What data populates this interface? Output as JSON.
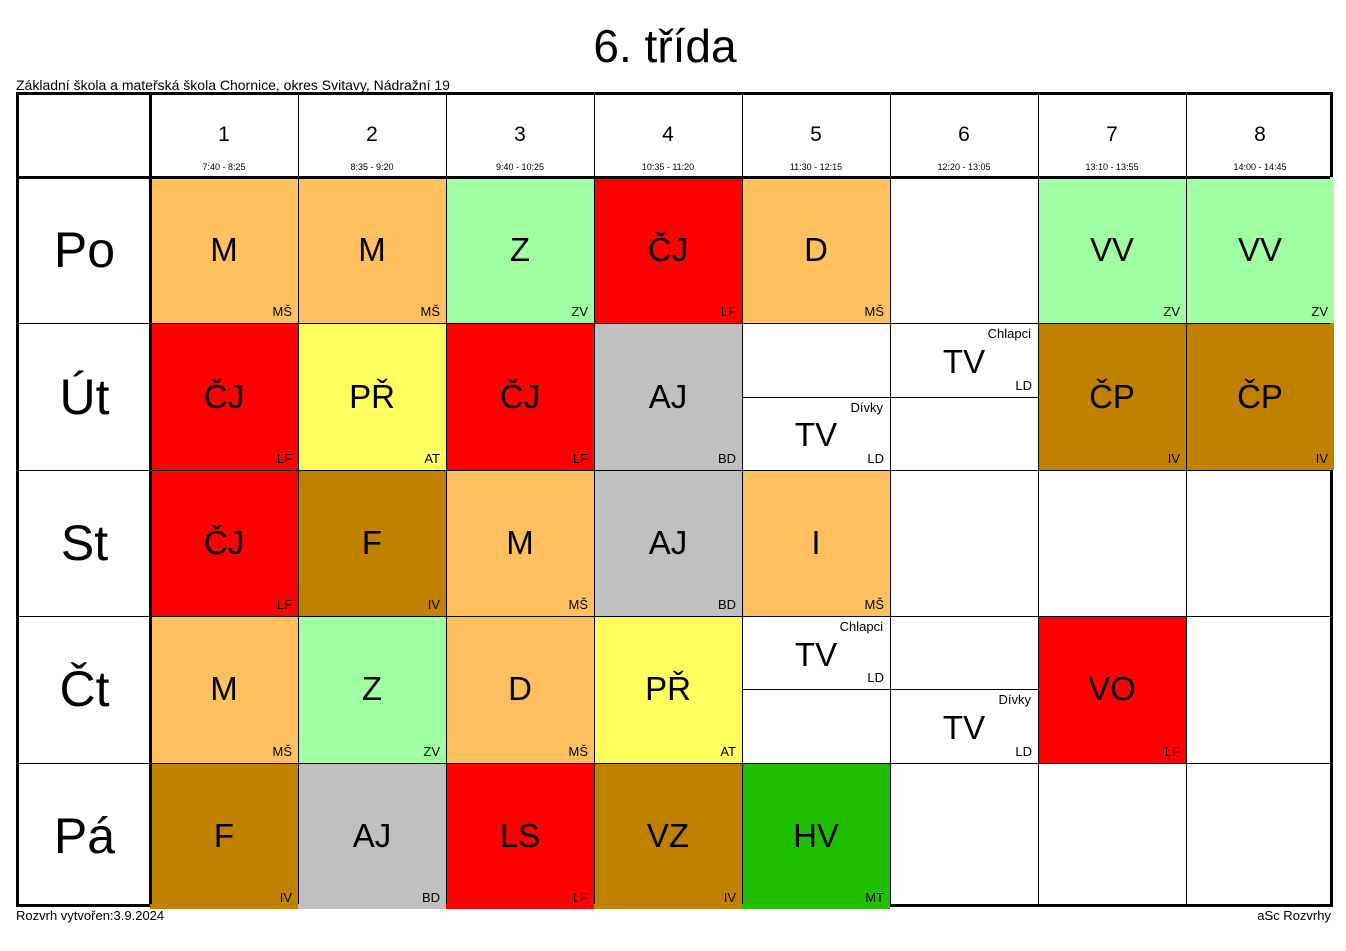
{
  "title": "6. třída",
  "school": "Základní škola a mateřská škola Chornice, okres Svitavy, Nádražní 19",
  "footer": {
    "created": "Rozvrh vytvořen:3.9.2024",
    "software": "aSc Rozvrhy"
  },
  "colors": {
    "orange": "#ffc060",
    "green_light": "#a0ff a0",
    "red": "#ff0000",
    "yellow": "#ffff60",
    "gray": "#c0c0c0",
    "brown": "#c08000",
    "green": "#20c000"
  },
  "periods": [
    {
      "num": "1",
      "time": "7:40 - 8:25"
    },
    {
      "num": "2",
      "time": "8:35 - 9:20"
    },
    {
      "num": "3",
      "time": "9:40 - 10:25"
    },
    {
      "num": "4",
      "time": "10:35 - 11:20"
    },
    {
      "num": "5",
      "time": "11:30 - 12:15"
    },
    {
      "num": "6",
      "time": "12:20 - 13:05"
    },
    {
      "num": "7",
      "time": "13:10 - 13:55"
    },
    {
      "num": "8",
      "time": "14:00 - 14:45"
    }
  ],
  "days": [
    "Po",
    "Út",
    "St",
    "Čt",
    "Pá"
  ],
  "lessons": [
    {
      "day": 0,
      "period": 0,
      "subject": "M",
      "teacher": "MŠ",
      "color": "#ffc060"
    },
    {
      "day": 0,
      "period": 1,
      "subject": "M",
      "teacher": "MŠ",
      "color": "#ffc060"
    },
    {
      "day": 0,
      "period": 2,
      "subject": "Z",
      "teacher": "ZV",
      "color": "#a0ffa0"
    },
    {
      "day": 0,
      "period": 3,
      "subject": "ČJ",
      "teacher": "LF",
      "color": "#ff0000"
    },
    {
      "day": 0,
      "period": 4,
      "subject": "D",
      "teacher": "MŠ",
      "color": "#ffc060"
    },
    {
      "day": 0,
      "period": 6,
      "subject": "VV",
      "teacher": "ZV",
      "color": "#a0ffa0"
    },
    {
      "day": 0,
      "period": 7,
      "subject": "VV",
      "teacher": "ZV",
      "color": "#a0ffa0"
    },
    {
      "day": 1,
      "period": 0,
      "subject": "ČJ",
      "teacher": "LF",
      "color": "#ff0000"
    },
    {
      "day": 1,
      "period": 1,
      "subject": "PŘ",
      "teacher": "AT",
      "color": "#ffff60"
    },
    {
      "day": 1,
      "period": 2,
      "subject": "ČJ",
      "teacher": "LF",
      "color": "#ff0000"
    },
    {
      "day": 1,
      "period": 3,
      "subject": "AJ",
      "teacher": "BD",
      "color": "#c0c0c0"
    },
    {
      "day": 1,
      "period": 4,
      "half": "bottom",
      "subject": "TV",
      "teacher": "LD",
      "group": "Dívky",
      "color": "#ffffff"
    },
    {
      "day": 1,
      "period": 5,
      "half": "top",
      "subject": "TV",
      "teacher": "LD",
      "group": "Chlapci",
      "color": "#ffffff"
    },
    {
      "day": 1,
      "period": 6,
      "subject": "ČP",
      "teacher": "IV",
      "color": "#c08000"
    },
    {
      "day": 1,
      "period": 7,
      "subject": "ČP",
      "teacher": "IV",
      "color": "#c08000"
    },
    {
      "day": 2,
      "period": 0,
      "subject": "ČJ",
      "teacher": "LF",
      "color": "#ff0000"
    },
    {
      "day": 2,
      "period": 1,
      "subject": "F",
      "teacher": "IV",
      "color": "#c08000"
    },
    {
      "day": 2,
      "period": 2,
      "subject": "M",
      "teacher": "MŠ",
      "color": "#ffc060"
    },
    {
      "day": 2,
      "period": 3,
      "subject": "AJ",
      "teacher": "BD",
      "color": "#c0c0c0"
    },
    {
      "day": 2,
      "period": 4,
      "subject": "I",
      "teacher": "MŠ",
      "color": "#ffc060"
    },
    {
      "day": 3,
      "period": 0,
      "subject": "M",
      "teacher": "MŠ",
      "color": "#ffc060"
    },
    {
      "day": 3,
      "period": 1,
      "subject": "Z",
      "teacher": "ZV",
      "color": "#a0ffa0"
    },
    {
      "day": 3,
      "period": 2,
      "subject": "D",
      "teacher": "MŠ",
      "color": "#ffc060"
    },
    {
      "day": 3,
      "period": 3,
      "subject": "PŘ",
      "teacher": "AT",
      "color": "#ffff60"
    },
    {
      "day": 3,
      "period": 4,
      "half": "top",
      "subject": "TV",
      "teacher": "LD",
      "group": "Chlapci",
      "color": "#ffffff"
    },
    {
      "day": 3,
      "period": 5,
      "half": "bottom",
      "subject": "TV",
      "teacher": "LD",
      "group": "Dívky",
      "color": "#ffffff"
    },
    {
      "day": 3,
      "period": 6,
      "subject": "VO",
      "teacher": "LF",
      "color": "#ff0000"
    },
    {
      "day": 4,
      "period": 0,
      "subject": "F",
      "teacher": "IV",
      "color": "#c08000"
    },
    {
      "day": 4,
      "period": 1,
      "subject": "AJ",
      "teacher": "BD",
      "color": "#c0c0c0"
    },
    {
      "day": 4,
      "period": 2,
      "subject": "LS",
      "teacher": "LF",
      "color": "#ff0000"
    },
    {
      "day": 4,
      "period": 3,
      "subject": "VZ",
      "teacher": "IV",
      "color": "#c08000"
    },
    {
      "day": 4,
      "period": 4,
      "subject": "HV",
      "teacher": "MT",
      "color": "#20c000"
    }
  ]
}
